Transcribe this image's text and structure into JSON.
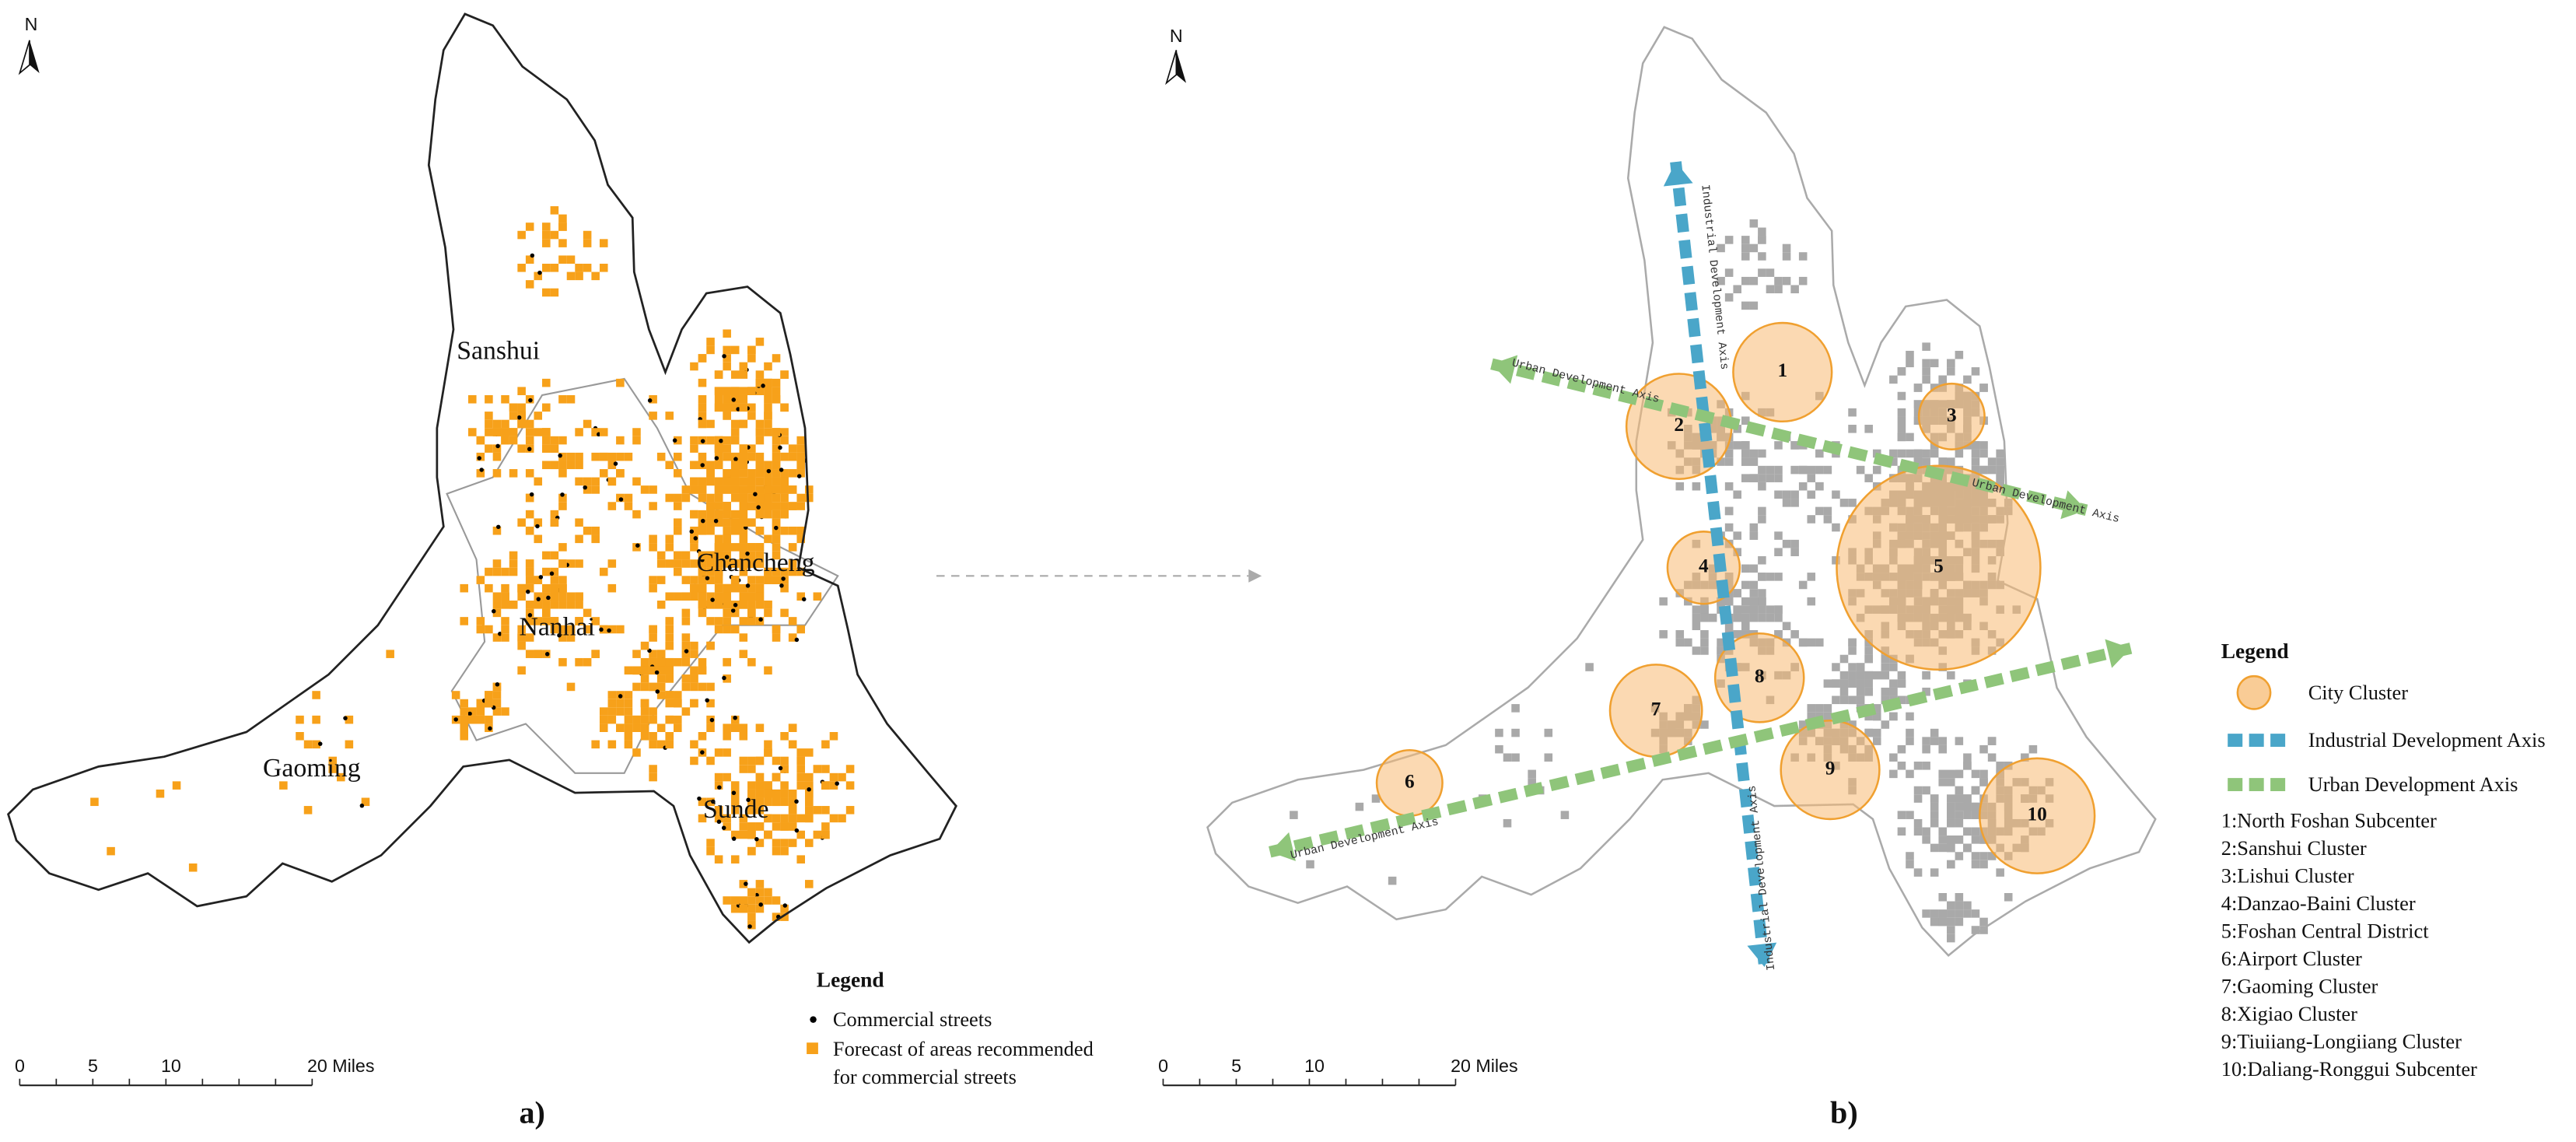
{
  "panel_a": {
    "north": "N",
    "places": [
      "Sanshui",
      "Chancheng",
      "Nanhai",
      "Gaoming",
      "Sunde"
    ],
    "legend": {
      "title": "Legend",
      "items": [
        "Commercial streets",
        "Forecast of areas recommended",
        "for commercial streets"
      ]
    },
    "scale": [
      "0",
      "5",
      "10",
      "20 Miles"
    ],
    "caption": "a)"
  },
  "panel_b": {
    "north": "N",
    "clusters": [
      "1",
      "2",
      "3",
      "4",
      "5",
      "6",
      "7",
      "8",
      "9",
      "10"
    ],
    "axis_labels": [
      "Industrial Development Axis",
      "Industrial Development Axis",
      "Urban Development Axis",
      "Urban Development Axis",
      "Urban Development Axis"
    ],
    "legend": {
      "title": "Legend",
      "items": [
        "City Cluster",
        "Industrial Development Axis",
        "Urban Development Axis"
      ],
      "list": [
        "1:North Foshan Subcenter",
        "2:Sanshui Cluster",
        "3:Lishui Cluster",
        "4:Danzao-Baini Cluster",
        "5:Foshan Central District",
        "6:Airport Cluster",
        "7:Gaoming Cluster",
        "8:Xigiao Cluster",
        "9:Tiuiiang-Longiiang Cluster",
        "10:Daliang-Ronggui Subcenter"
      ]
    },
    "scale": [
      "0",
      "5",
      "10",
      "20 Miles"
    ],
    "caption": "b)"
  }
}
